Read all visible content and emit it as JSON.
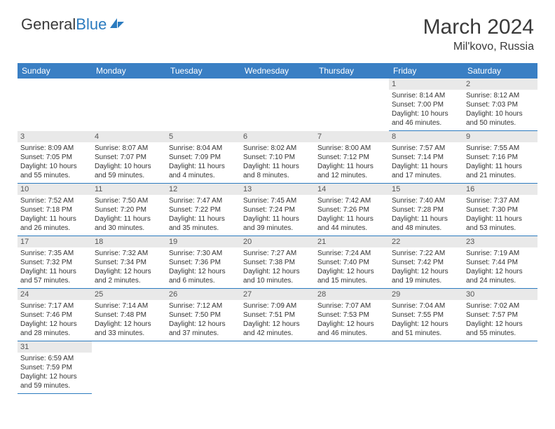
{
  "logo": {
    "text1": "General",
    "text2": "Blue"
  },
  "title": "March 2024",
  "location": "Mil'kovo, Russia",
  "colors": {
    "header_bg": "#3a7fc4",
    "header_fg": "#ffffff",
    "daynum_bg": "#e9e9e9",
    "border": "#2b7bbf",
    "logo_blue": "#2b7bbf",
    "text": "#333333"
  },
  "day_headers": [
    "Sunday",
    "Monday",
    "Tuesday",
    "Wednesday",
    "Thursday",
    "Friday",
    "Saturday"
  ],
  "weeks": [
    [
      null,
      null,
      null,
      null,
      null,
      {
        "n": "1",
        "sr": "Sunrise: 8:14 AM",
        "ss": "Sunset: 7:00 PM",
        "d1": "Daylight: 10 hours",
        "d2": "and 46 minutes."
      },
      {
        "n": "2",
        "sr": "Sunrise: 8:12 AM",
        "ss": "Sunset: 7:03 PM",
        "d1": "Daylight: 10 hours",
        "d2": "and 50 minutes."
      }
    ],
    [
      {
        "n": "3",
        "sr": "Sunrise: 8:09 AM",
        "ss": "Sunset: 7:05 PM",
        "d1": "Daylight: 10 hours",
        "d2": "and 55 minutes."
      },
      {
        "n": "4",
        "sr": "Sunrise: 8:07 AM",
        "ss": "Sunset: 7:07 PM",
        "d1": "Daylight: 10 hours",
        "d2": "and 59 minutes."
      },
      {
        "n": "5",
        "sr": "Sunrise: 8:04 AM",
        "ss": "Sunset: 7:09 PM",
        "d1": "Daylight: 11 hours",
        "d2": "and 4 minutes."
      },
      {
        "n": "6",
        "sr": "Sunrise: 8:02 AM",
        "ss": "Sunset: 7:10 PM",
        "d1": "Daylight: 11 hours",
        "d2": "and 8 minutes."
      },
      {
        "n": "7",
        "sr": "Sunrise: 8:00 AM",
        "ss": "Sunset: 7:12 PM",
        "d1": "Daylight: 11 hours",
        "d2": "and 12 minutes."
      },
      {
        "n": "8",
        "sr": "Sunrise: 7:57 AM",
        "ss": "Sunset: 7:14 PM",
        "d1": "Daylight: 11 hours",
        "d2": "and 17 minutes."
      },
      {
        "n": "9",
        "sr": "Sunrise: 7:55 AM",
        "ss": "Sunset: 7:16 PM",
        "d1": "Daylight: 11 hours",
        "d2": "and 21 minutes."
      }
    ],
    [
      {
        "n": "10",
        "sr": "Sunrise: 7:52 AM",
        "ss": "Sunset: 7:18 PM",
        "d1": "Daylight: 11 hours",
        "d2": "and 26 minutes."
      },
      {
        "n": "11",
        "sr": "Sunrise: 7:50 AM",
        "ss": "Sunset: 7:20 PM",
        "d1": "Daylight: 11 hours",
        "d2": "and 30 minutes."
      },
      {
        "n": "12",
        "sr": "Sunrise: 7:47 AM",
        "ss": "Sunset: 7:22 PM",
        "d1": "Daylight: 11 hours",
        "d2": "and 35 minutes."
      },
      {
        "n": "13",
        "sr": "Sunrise: 7:45 AM",
        "ss": "Sunset: 7:24 PM",
        "d1": "Daylight: 11 hours",
        "d2": "and 39 minutes."
      },
      {
        "n": "14",
        "sr": "Sunrise: 7:42 AM",
        "ss": "Sunset: 7:26 PM",
        "d1": "Daylight: 11 hours",
        "d2": "and 44 minutes."
      },
      {
        "n": "15",
        "sr": "Sunrise: 7:40 AM",
        "ss": "Sunset: 7:28 PM",
        "d1": "Daylight: 11 hours",
        "d2": "and 48 minutes."
      },
      {
        "n": "16",
        "sr": "Sunrise: 7:37 AM",
        "ss": "Sunset: 7:30 PM",
        "d1": "Daylight: 11 hours",
        "d2": "and 53 minutes."
      }
    ],
    [
      {
        "n": "17",
        "sr": "Sunrise: 7:35 AM",
        "ss": "Sunset: 7:32 PM",
        "d1": "Daylight: 11 hours",
        "d2": "and 57 minutes."
      },
      {
        "n": "18",
        "sr": "Sunrise: 7:32 AM",
        "ss": "Sunset: 7:34 PM",
        "d1": "Daylight: 12 hours",
        "d2": "and 2 minutes."
      },
      {
        "n": "19",
        "sr": "Sunrise: 7:30 AM",
        "ss": "Sunset: 7:36 PM",
        "d1": "Daylight: 12 hours",
        "d2": "and 6 minutes."
      },
      {
        "n": "20",
        "sr": "Sunrise: 7:27 AM",
        "ss": "Sunset: 7:38 PM",
        "d1": "Daylight: 12 hours",
        "d2": "and 10 minutes."
      },
      {
        "n": "21",
        "sr": "Sunrise: 7:24 AM",
        "ss": "Sunset: 7:40 PM",
        "d1": "Daylight: 12 hours",
        "d2": "and 15 minutes."
      },
      {
        "n": "22",
        "sr": "Sunrise: 7:22 AM",
        "ss": "Sunset: 7:42 PM",
        "d1": "Daylight: 12 hours",
        "d2": "and 19 minutes."
      },
      {
        "n": "23",
        "sr": "Sunrise: 7:19 AM",
        "ss": "Sunset: 7:44 PM",
        "d1": "Daylight: 12 hours",
        "d2": "and 24 minutes."
      }
    ],
    [
      {
        "n": "24",
        "sr": "Sunrise: 7:17 AM",
        "ss": "Sunset: 7:46 PM",
        "d1": "Daylight: 12 hours",
        "d2": "and 28 minutes."
      },
      {
        "n": "25",
        "sr": "Sunrise: 7:14 AM",
        "ss": "Sunset: 7:48 PM",
        "d1": "Daylight: 12 hours",
        "d2": "and 33 minutes."
      },
      {
        "n": "26",
        "sr": "Sunrise: 7:12 AM",
        "ss": "Sunset: 7:50 PM",
        "d1": "Daylight: 12 hours",
        "d2": "and 37 minutes."
      },
      {
        "n": "27",
        "sr": "Sunrise: 7:09 AM",
        "ss": "Sunset: 7:51 PM",
        "d1": "Daylight: 12 hours",
        "d2": "and 42 minutes."
      },
      {
        "n": "28",
        "sr": "Sunrise: 7:07 AM",
        "ss": "Sunset: 7:53 PM",
        "d1": "Daylight: 12 hours",
        "d2": "and 46 minutes."
      },
      {
        "n": "29",
        "sr": "Sunrise: 7:04 AM",
        "ss": "Sunset: 7:55 PM",
        "d1": "Daylight: 12 hours",
        "d2": "and 51 minutes."
      },
      {
        "n": "30",
        "sr": "Sunrise: 7:02 AM",
        "ss": "Sunset: 7:57 PM",
        "d1": "Daylight: 12 hours",
        "d2": "and 55 minutes."
      }
    ],
    [
      {
        "n": "31",
        "sr": "Sunrise: 6:59 AM",
        "ss": "Sunset: 7:59 PM",
        "d1": "Daylight: 12 hours",
        "d2": "and 59 minutes."
      },
      null,
      null,
      null,
      null,
      null,
      null
    ]
  ]
}
